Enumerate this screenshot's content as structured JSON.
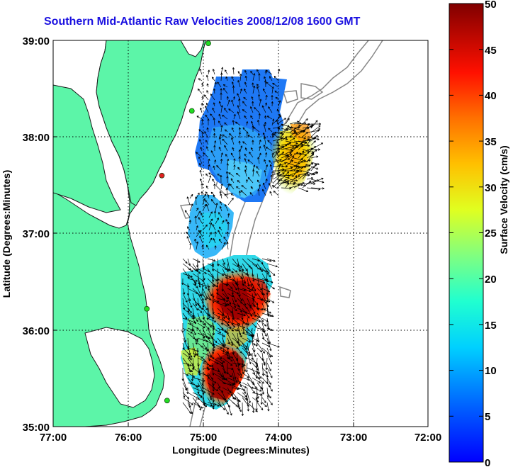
{
  "title": "Southern Mid-Atlantic Raw Velocities 2008/12/08 1600 GMT",
  "axes": {
    "xlabel": "Longitude (Degrees:Minutes)",
    "ylabel": "Latitude (Degrees:Minutes)",
    "x_ticks": [
      "77:00",
      "76:00",
      "75:00",
      "74:00",
      "73:00",
      "72:00"
    ],
    "y_ticks": [
      "39:00",
      "38:00",
      "37:00",
      "36:00",
      "35:00"
    ]
  },
  "colorbar": {
    "label": "Surface Velocity (cm/s)",
    "ticks": [
      "50",
      "45",
      "40",
      "35",
      "30",
      "25",
      "20",
      "15",
      "10",
      "5",
      "0"
    ],
    "range": [
      0,
      50
    ],
    "colormap": "jet"
  },
  "colors": {
    "title": "#1a10e0",
    "land": "#5cf5a8",
    "coast": "#1a1a1a",
    "bathymetry": "#888888",
    "site_green": "#22dd22",
    "site_red": "#e02020",
    "grid": "#000000"
  },
  "map": {
    "lon_range": [
      -77,
      -72
    ],
    "lat_range": [
      35,
      39
    ],
    "grid": true,
    "stations": [
      {
        "lon": -74.93,
        "lat": 38.97,
        "status": "active"
      },
      {
        "lon": -75.15,
        "lat": 38.27,
        "status": "active"
      },
      {
        "lon": -75.55,
        "lat": 37.6,
        "status": "inactive"
      },
      {
        "lon": -75.75,
        "lat": 36.22,
        "status": "active"
      },
      {
        "lon": -75.48,
        "lat": 35.27,
        "status": "active"
      }
    ]
  }
}
